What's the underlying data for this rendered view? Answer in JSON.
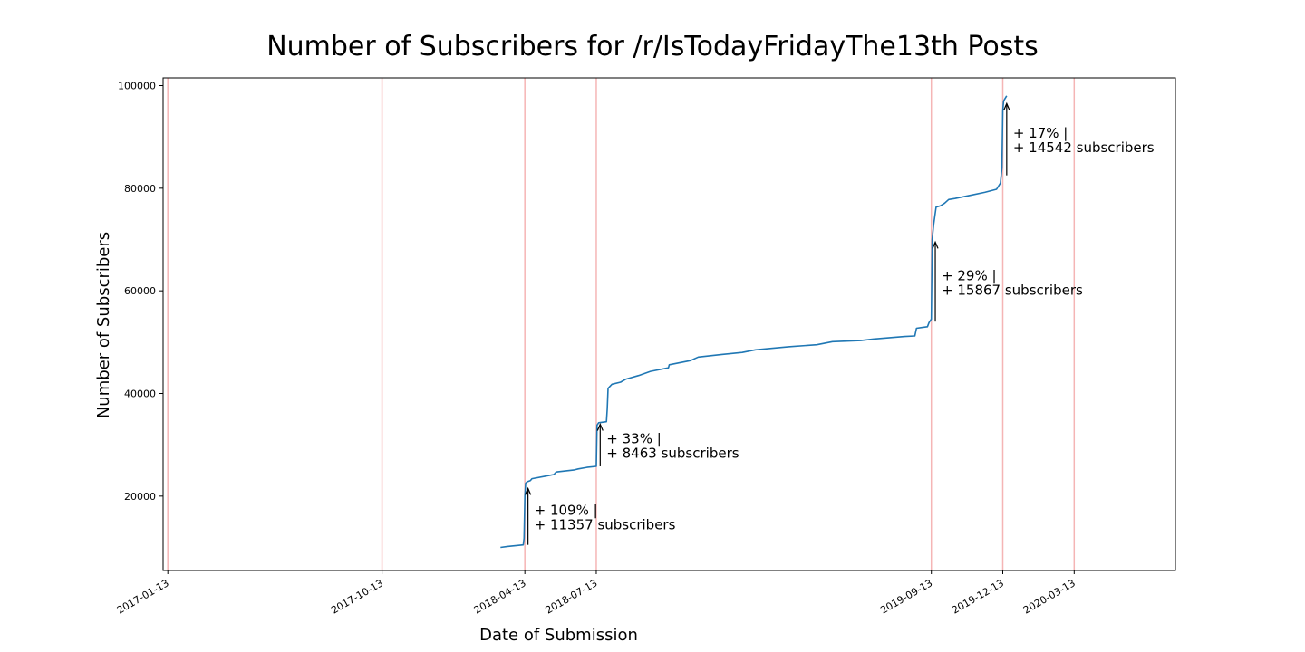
{
  "chart_data": {
    "type": "line",
    "title": "Number of Subscribers for /r/IsTodayFridayThe13th Posts",
    "xlabel": "Date of Submission",
    "ylabel": "Number of Subscribers",
    "xlim": [
      "2017-01-07",
      "2020-07-20"
    ],
    "ylim": [
      5500,
      101500
    ],
    "yticks": [
      20000,
      40000,
      60000,
      80000,
      100000
    ],
    "xticks": [
      "2017-01-13",
      "2017-10-13",
      "2018-04-13",
      "2018-07-13",
      "2019-09-13",
      "2019-12-13",
      "2020-03-13"
    ],
    "highlight_dates": [
      "2017-01-13",
      "2017-10-13",
      "2018-04-13",
      "2018-07-13",
      "2019-09-13",
      "2019-12-13",
      "2020-03-13"
    ],
    "highlight_color": "#f5b5b5",
    "line_color": "#1f77b4",
    "grid": false,
    "series": [
      {
        "name": "",
        "points": [
          [
            "2018-03-13",
            10000
          ],
          [
            "2018-03-22",
            10200
          ],
          [
            "2018-04-11",
            10500
          ],
          [
            "2018-04-12",
            11800
          ],
          [
            "2018-04-13",
            20000
          ],
          [
            "2018-04-14",
            22500
          ],
          [
            "2018-04-16",
            22800
          ],
          [
            "2018-04-20",
            23000
          ],
          [
            "2018-04-22",
            23400
          ],
          [
            "2018-05-10",
            23900
          ],
          [
            "2018-05-20",
            24200
          ],
          [
            "2018-05-23",
            24700
          ],
          [
            "2018-06-15",
            25100
          ],
          [
            "2018-06-20",
            25300
          ],
          [
            "2018-07-01",
            25600
          ],
          [
            "2018-07-13",
            25800
          ],
          [
            "2018-07-14",
            33800
          ],
          [
            "2018-07-16",
            34300
          ],
          [
            "2018-07-26",
            34500
          ],
          [
            "2018-07-27",
            37000
          ],
          [
            "2018-07-28",
            41000
          ],
          [
            "2018-08-02",
            41800
          ],
          [
            "2018-08-13",
            42200
          ],
          [
            "2018-08-20",
            42800
          ],
          [
            "2018-09-05",
            43500
          ],
          [
            "2018-09-20",
            44300
          ],
          [
            "2018-10-13",
            45000
          ],
          [
            "2018-10-14",
            45600
          ],
          [
            "2018-11-10",
            46400
          ],
          [
            "2018-11-20",
            47100
          ],
          [
            "2018-12-20",
            47600
          ],
          [
            "2019-01-15",
            48000
          ],
          [
            "2019-02-01",
            48500
          ],
          [
            "2019-03-15",
            49100
          ],
          [
            "2019-04-20",
            49500
          ],
          [
            "2019-05-10",
            50100
          ],
          [
            "2019-06-15",
            50300
          ],
          [
            "2019-07-01",
            50600
          ],
          [
            "2019-08-10",
            51100
          ],
          [
            "2019-08-23",
            51200
          ],
          [
            "2019-08-25",
            52700
          ],
          [
            "2019-09-08",
            53000
          ],
          [
            "2019-09-10",
            53800
          ],
          [
            "2019-09-13",
            54500
          ],
          [
            "2019-09-14",
            70000
          ],
          [
            "2019-09-16",
            73000
          ],
          [
            "2019-09-19",
            76300
          ],
          [
            "2019-09-25",
            76600
          ],
          [
            "2019-09-30",
            77100
          ],
          [
            "2019-10-05",
            77800
          ],
          [
            "2019-10-13",
            78000
          ],
          [
            "2019-11-01",
            78600
          ],
          [
            "2019-11-20",
            79200
          ],
          [
            "2019-12-05",
            79800
          ],
          [
            "2019-12-10",
            81000
          ],
          [
            "2019-12-12",
            84000
          ],
          [
            "2019-12-13",
            95000
          ],
          [
            "2019-12-14",
            97000
          ],
          [
            "2019-12-18",
            98000
          ]
        ]
      }
    ],
    "annotations": [
      {
        "line1": "+ 109% |",
        "line2": "+ 11357 subscribers",
        "date": "2018-04-17",
        "y_from": 10500,
        "y_to": 21500
      },
      {
        "line1": "+ 33% |",
        "line2": "+ 8463 subscribers",
        "date": "2018-07-18",
        "y_from": 25800,
        "y_to": 34000
      },
      {
        "line1": "+ 29% |",
        "line2": "+ 15867 subscribers",
        "date": "2019-09-18",
        "y_from": 54000,
        "y_to": 69500
      },
      {
        "line1": "+ 17% |",
        "line2": "+ 14542 subscribers",
        "date": "2019-12-18",
        "y_from": 82500,
        "y_to": 96500
      }
    ]
  }
}
